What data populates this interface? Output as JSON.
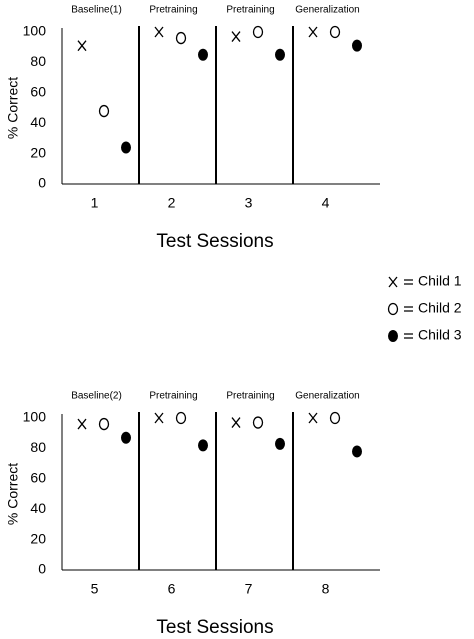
{
  "chart_data": [
    {
      "type": "scatter",
      "phases": [
        "Baseline(1)",
        "Pretraining",
        "Pretraining",
        "Generalization"
      ],
      "categories": [
        "1",
        "2",
        "3",
        "4"
      ],
      "x_label": "Test Sessions",
      "y_label": "% Correct",
      "ylim": [
        0,
        100
      ],
      "yticks": [
        0,
        20,
        40,
        60,
        80,
        100
      ],
      "legend": "right",
      "series": [
        {
          "name": "Child 1",
          "marker": "x",
          "color": "#000000",
          "values": [
            91,
            100,
            97,
            100
          ]
        },
        {
          "name": "Child 2",
          "marker": "o",
          "color": "#000000",
          "values": [
            48,
            96,
            100,
            100
          ]
        },
        {
          "name": "Child 3",
          "marker": "dot",
          "color": "#000000",
          "values": [
            24,
            85,
            85,
            91
          ]
        }
      ]
    },
    {
      "type": "scatter",
      "phases": [
        "Baseline(2)",
        "Pretraining",
        "Pretraining",
        "Generalization"
      ],
      "categories": [
        "5",
        "6",
        "7",
        "8"
      ],
      "x_label": "Test Sessions",
      "y_label": "% Correct",
      "ylim": [
        0,
        100
      ],
      "yticks": [
        0,
        20,
        40,
        60,
        80,
        100
      ],
      "series": [
        {
          "name": "Child 1",
          "marker": "x",
          "color": "#000000",
          "values": [
            96,
            100,
            97,
            100
          ]
        },
        {
          "name": "Child 2",
          "marker": "o",
          "color": "#000000",
          "values": [
            96,
            100,
            97,
            100
          ]
        },
        {
          "name": "Child 3",
          "marker": "dot",
          "color": "#000000",
          "values": [
            87,
            82,
            83,
            78
          ]
        }
      ]
    }
  ]
}
